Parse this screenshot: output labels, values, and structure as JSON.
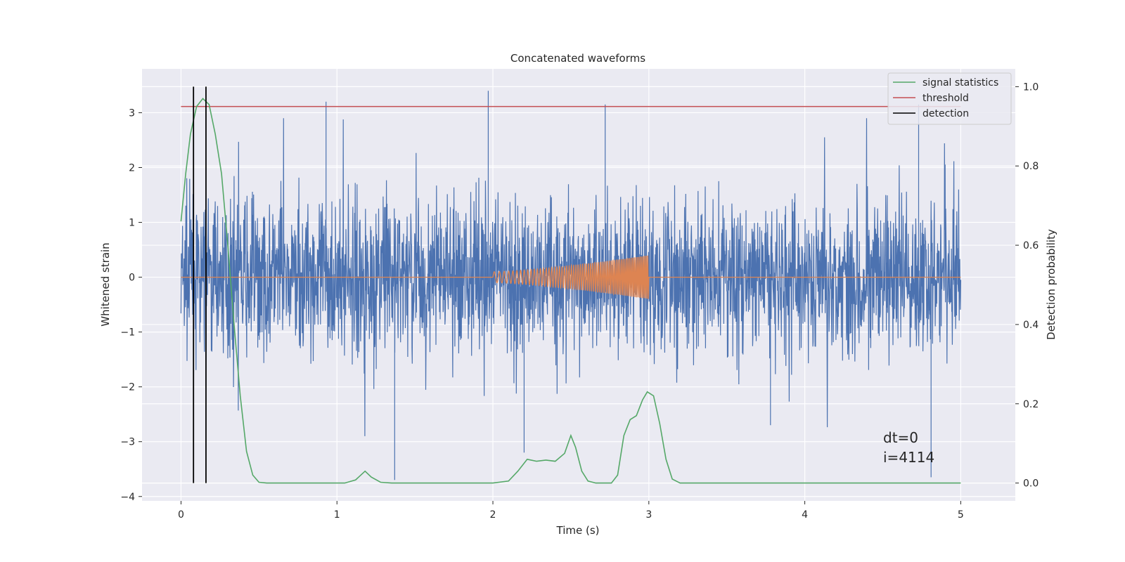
{
  "chart_data": {
    "type": "line",
    "title": "Concatenated waveforms",
    "xlabel": "Time (s)",
    "ylabel": "Whitened strain",
    "y2label": "Detection probability",
    "xlim": [
      -0.25,
      5.35
    ],
    "ylim": [
      -4.08,
      3.8
    ],
    "y2lim": [
      -0.045,
      1.045
    ],
    "xticks": [
      0,
      1,
      2,
      3,
      4,
      5
    ],
    "yticks": [
      -4,
      -3,
      -2,
      -1,
      0,
      1,
      2,
      3
    ],
    "y2ticks": [
      0.0,
      0.2,
      0.4,
      0.6,
      0.8,
      1.0
    ],
    "grid": true,
    "legend_position": "upper right",
    "colors": {
      "background": "#eaeaf2",
      "grid": "#ffffff",
      "noise": "#4c72b0",
      "injection": "#dd8452",
      "signal_statistics": "#55a868",
      "threshold": "#c44e52",
      "detection": "#000000"
    },
    "series": [
      {
        "label": "whitened strain (noise)",
        "kind": "noise",
        "t_range": [
          0,
          5
        ],
        "approx_amplitude_envelope": 1.9,
        "spike_peaks": [
          [
            0.93,
            3.2
          ],
          [
            1.97,
            3.4
          ],
          [
            2.72,
            3.15
          ],
          [
            4.73,
            3.15
          ],
          [
            1.37,
            -3.7
          ],
          [
            2.2,
            -3.2
          ],
          [
            4.81,
            -3.65
          ],
          [
            3.78,
            -2.7
          ]
        ]
      },
      {
        "label": "injected waveform",
        "kind": "chirp",
        "t_start": 2.0,
        "t_end": 3.0,
        "amplitude_start": 0.1,
        "amplitude_end": 0.4
      },
      {
        "name": "signal statistics",
        "axis": "right",
        "points": [
          [
            0.0,
            0.66
          ],
          [
            0.03,
            0.78
          ],
          [
            0.06,
            0.88
          ],
          [
            0.1,
            0.95
          ],
          [
            0.14,
            0.97
          ],
          [
            0.18,
            0.955
          ],
          [
            0.22,
            0.88
          ],
          [
            0.26,
            0.78
          ],
          [
            0.3,
            0.6
          ],
          [
            0.34,
            0.4
          ],
          [
            0.38,
            0.22
          ],
          [
            0.42,
            0.08
          ],
          [
            0.46,
            0.02
          ],
          [
            0.5,
            0.002
          ],
          [
            0.55,
            0.0
          ],
          [
            1.05,
            0.0
          ],
          [
            1.12,
            0.008
          ],
          [
            1.18,
            0.03
          ],
          [
            1.22,
            0.015
          ],
          [
            1.28,
            0.002
          ],
          [
            1.35,
            0.0
          ],
          [
            2.0,
            0.0
          ],
          [
            2.1,
            0.005
          ],
          [
            2.16,
            0.03
          ],
          [
            2.22,
            0.06
          ],
          [
            2.28,
            0.055
          ],
          [
            2.34,
            0.058
          ],
          [
            2.4,
            0.055
          ],
          [
            2.46,
            0.075
          ],
          [
            2.5,
            0.12
          ],
          [
            2.53,
            0.09
          ],
          [
            2.57,
            0.03
          ],
          [
            2.61,
            0.005
          ],
          [
            2.66,
            0.0
          ],
          [
            2.76,
            0.0
          ],
          [
            2.8,
            0.02
          ],
          [
            2.84,
            0.12
          ],
          [
            2.88,
            0.16
          ],
          [
            2.92,
            0.17
          ],
          [
            2.96,
            0.21
          ],
          [
            2.99,
            0.23
          ],
          [
            3.03,
            0.22
          ],
          [
            3.07,
            0.15
          ],
          [
            3.11,
            0.06
          ],
          [
            3.15,
            0.01
          ],
          [
            3.2,
            0.0
          ],
          [
            5.0,
            0.0
          ]
        ]
      },
      {
        "name": "threshold",
        "axis": "right",
        "value": 0.95,
        "x_range": [
          0,
          5
        ]
      },
      {
        "name": "detection",
        "axis": "right",
        "x": [
          0.08,
          0.16
        ],
        "y_range": [
          0.0,
          1.0
        ]
      }
    ],
    "legend": [
      "signal statistics",
      "threshold",
      "detection"
    ],
    "annotations": [
      "dt=0",
      "i=4114"
    ]
  }
}
